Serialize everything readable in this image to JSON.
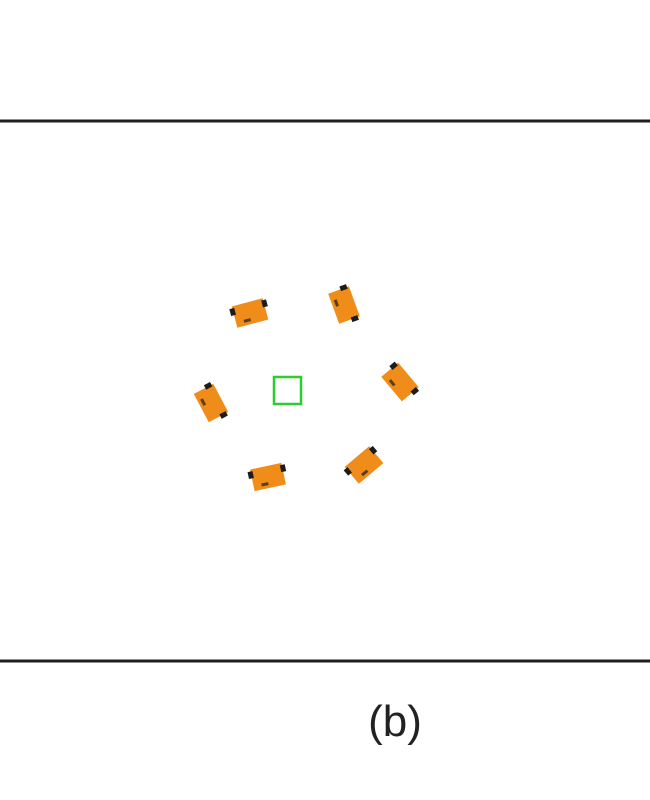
{
  "figure": {
    "caption": "(b)",
    "colors": {
      "frame": "#1f1f1f",
      "robot_body": "#f08c1a",
      "robot_wheel": "#1c1c1c",
      "target_marker": "#2ecc2e",
      "background": "#ffffff"
    },
    "icons": {
      "robot": "robot-vehicle-icon",
      "target": "target-square-icon"
    },
    "robot_count": 6
  }
}
